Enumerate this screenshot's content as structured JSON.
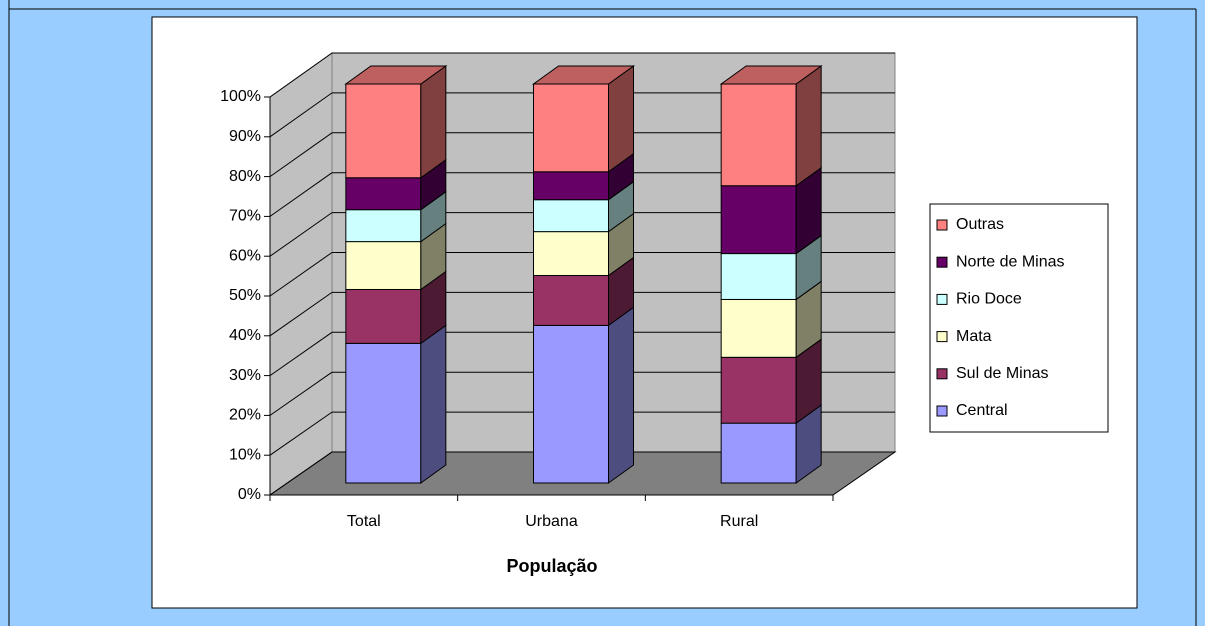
{
  "chart_data": {
    "type": "stacked_bar_3d",
    "x_label": "População",
    "categories": [
      "Total",
      "Urbana",
      "Rural"
    ],
    "series": [
      {
        "name": "Central",
        "color": "#9999ff",
        "values": [
          35,
          39.5,
          15
        ]
      },
      {
        "name": "Sul de Minas",
        "color": "#993366",
        "values": [
          13.5,
          12.5,
          16.5
        ]
      },
      {
        "name": "Mata",
        "color": "#ffffcc",
        "values": [
          12,
          11,
          14.5
        ]
      },
      {
        "name": "Rio Doce",
        "color": "#ccffff",
        "values": [
          8,
          8,
          11.5
        ]
      },
      {
        "name": "Norte de Minas",
        "color": "#660066",
        "values": [
          8,
          7,
          17
        ]
      },
      {
        "name": "Outras",
        "color": "#ff8080",
        "values": [
          23.5,
          22,
          25.5
        ]
      }
    ],
    "ylim": [
      0,
      100
    ],
    "yticks": [
      {
        "value": 0,
        "label": "0%"
      },
      {
        "value": 10,
        "label": "10%"
      },
      {
        "value": 20,
        "label": "20%"
      },
      {
        "value": 30,
        "label": "30%"
      },
      {
        "value": 40,
        "label": "40%"
      },
      {
        "value": 50,
        "label": "50%"
      },
      {
        "value": 60,
        "label": "60%"
      },
      {
        "value": 70,
        "label": "70%"
      },
      {
        "value": 80,
        "label": "80%"
      },
      {
        "value": 90,
        "label": "90%"
      },
      {
        "value": 100,
        "label": "100%"
      }
    ],
    "grid": true,
    "legend": "right"
  }
}
